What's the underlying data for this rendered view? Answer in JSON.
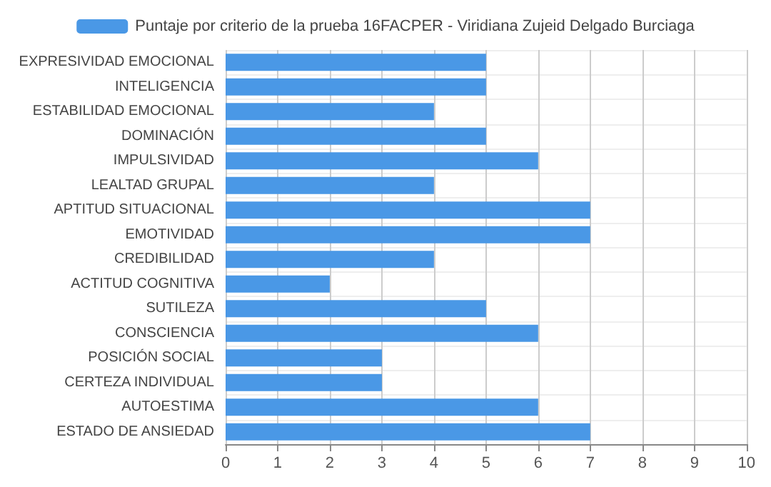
{
  "chart_data": {
    "type": "bar",
    "orientation": "horizontal",
    "categories": [
      "EXPRESIVIDAD EMOCIONAL",
      "INTELIGENCIA",
      "ESTABILIDAD EMOCIONAL",
      "DOMINACIÓN",
      "IMPULSIVIDAD",
      "LEALTAD GRUPAL",
      "APTITUD SITUACIONAL",
      "EMOTIVIDAD",
      "CREDIBILIDAD",
      "ACTITUD COGNITIVA",
      "SUTILEZA",
      "CONSCIENCIA",
      "POSICIÓN SOCIAL",
      "CERTEZA INDIVIDUAL",
      "AUTOESTIMA",
      "ESTADO DE ANSIEDAD"
    ],
    "series": [
      {
        "name": "Puntaje por criterio de la prueba 16FACPER - Viridiana Zujeid Delgado Burciaga",
        "color": "#4a98e6",
        "values": [
          5,
          5,
          4,
          5,
          6,
          4,
          7,
          7,
          4,
          2,
          5,
          6,
          3,
          3,
          6,
          7
        ]
      }
    ],
    "xlim": [
      0,
      10
    ],
    "xticks": [
      0,
      1,
      2,
      3,
      4,
      5,
      6,
      7,
      8,
      9,
      10
    ],
    "grid": true,
    "legend": "top"
  }
}
